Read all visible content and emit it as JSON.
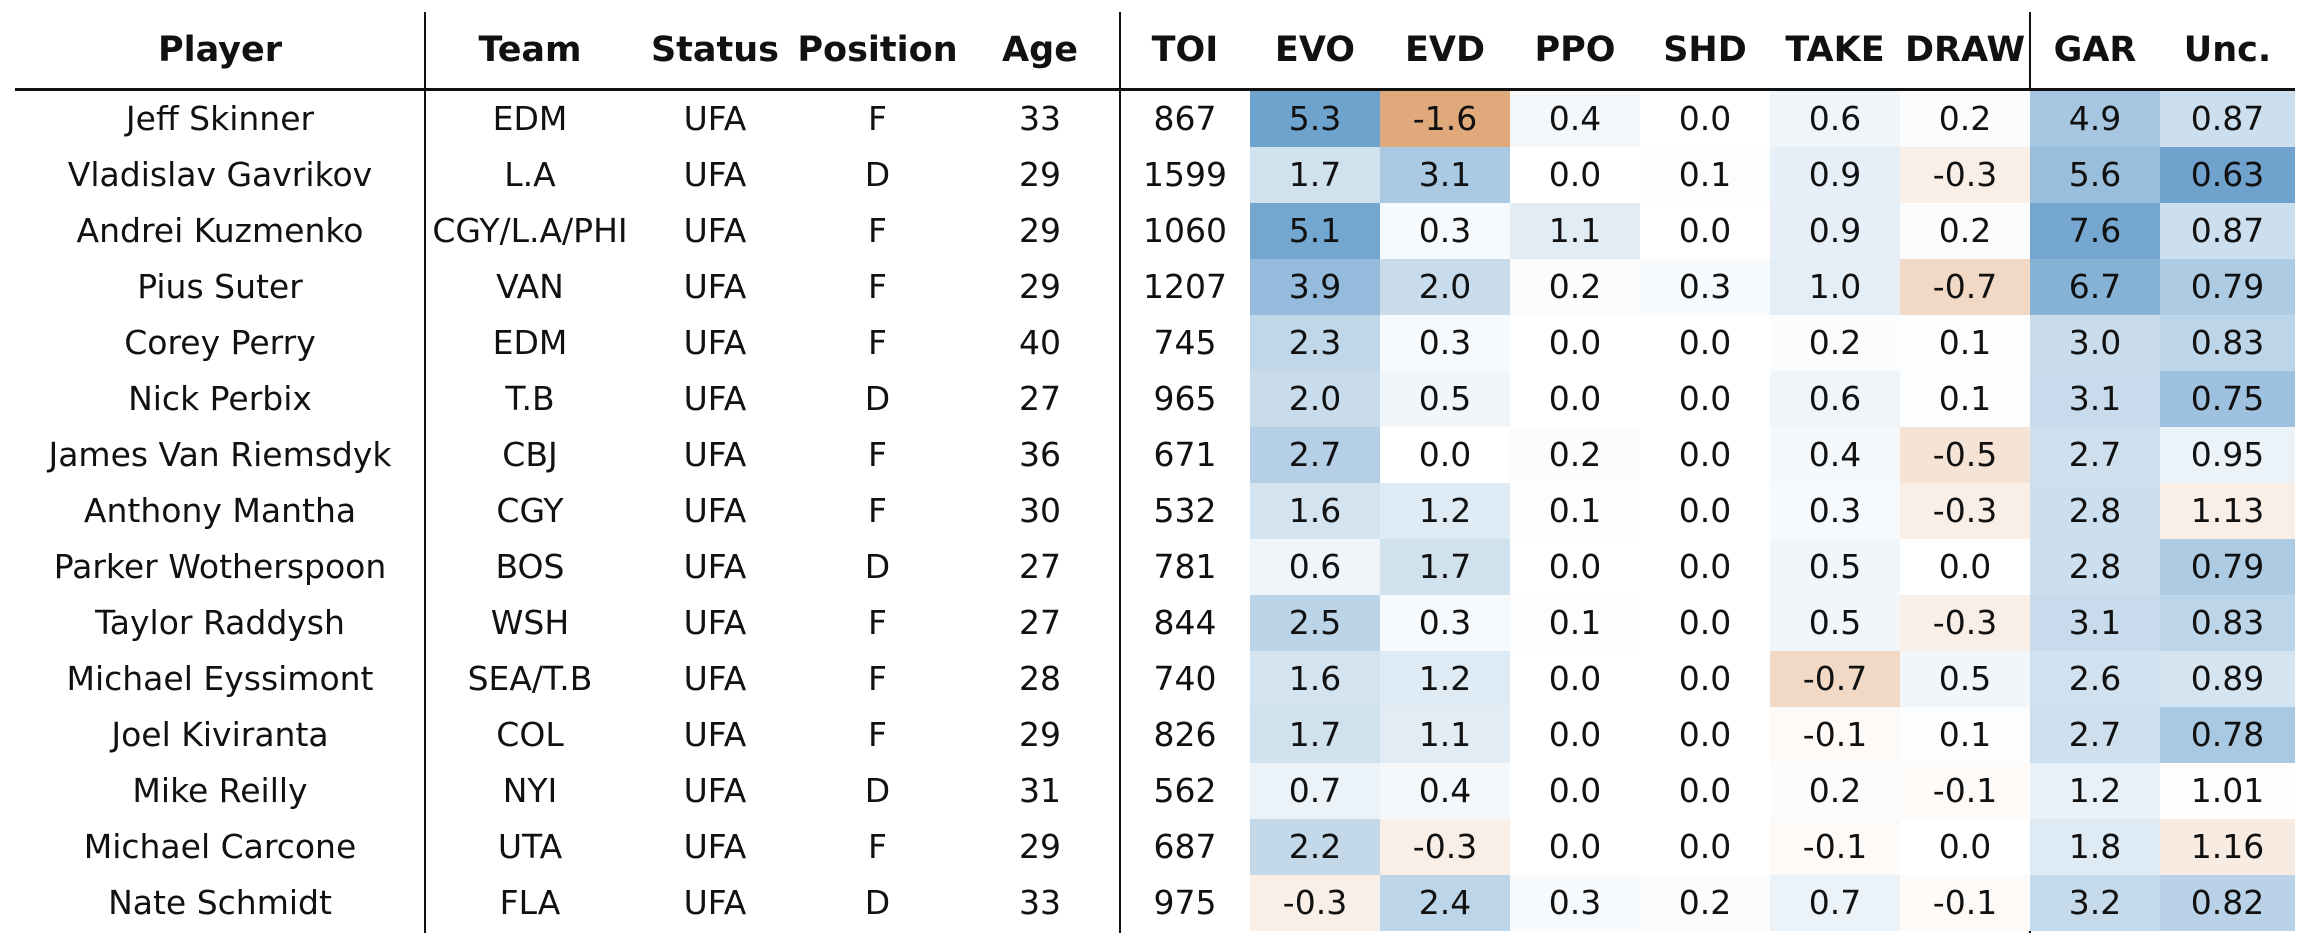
{
  "chart_data": {
    "type": "table",
    "columns": [
      "Player",
      "Team",
      "Status",
      "Position",
      "Age",
      "TOI",
      "EVO",
      "EVD",
      "PPO",
      "SHD",
      "TAKE",
      "DRAW",
      "GAR",
      "Unc."
    ],
    "rows": [
      [
        "Jeff Skinner",
        "EDM",
        "UFA",
        "F",
        "33",
        "867",
        "5.3",
        "-1.6",
        "0.4",
        "0.0",
        "0.6",
        "0.2",
        "4.9",
        "0.87"
      ],
      [
        "Vladislav Gavrikov",
        "L.A",
        "UFA",
        "D",
        "29",
        "1599",
        "1.7",
        "3.1",
        "0.0",
        "0.1",
        "0.9",
        "-0.3",
        "5.6",
        "0.63"
      ],
      [
        "Andrei Kuzmenko",
        "CGY/L.A/PHI",
        "UFA",
        "F",
        "29",
        "1060",
        "5.1",
        "0.3",
        "1.1",
        "0.0",
        "0.9",
        "0.2",
        "7.6",
        "0.87"
      ],
      [
        "Pius Suter",
        "VAN",
        "UFA",
        "F",
        "29",
        "1207",
        "3.9",
        "2.0",
        "0.2",
        "0.3",
        "1.0",
        "-0.7",
        "6.7",
        "0.79"
      ],
      [
        "Corey Perry",
        "EDM",
        "UFA",
        "F",
        "40",
        "745",
        "2.3",
        "0.3",
        "0.0",
        "0.0",
        "0.2",
        "0.1",
        "3.0",
        "0.83"
      ],
      [
        "Nick Perbix",
        "T.B",
        "UFA",
        "D",
        "27",
        "965",
        "2.0",
        "0.5",
        "0.0",
        "0.0",
        "0.6",
        "0.1",
        "3.1",
        "0.75"
      ],
      [
        "James Van Riemsdyk",
        "CBJ",
        "UFA",
        "F",
        "36",
        "671",
        "2.7",
        "0.0",
        "0.2",
        "0.0",
        "0.4",
        "-0.5",
        "2.7",
        "0.95"
      ],
      [
        "Anthony Mantha",
        "CGY",
        "UFA",
        "F",
        "30",
        "532",
        "1.6",
        "1.2",
        "0.1",
        "0.0",
        "0.3",
        "-0.3",
        "2.8",
        "1.13"
      ],
      [
        "Parker Wotherspoon",
        "BOS",
        "UFA",
        "D",
        "27",
        "781",
        "0.6",
        "1.7",
        "0.0",
        "0.0",
        "0.5",
        "0.0",
        "2.8",
        "0.79"
      ],
      [
        "Taylor Raddysh",
        "WSH",
        "UFA",
        "F",
        "27",
        "844",
        "2.5",
        "0.3",
        "0.1",
        "0.0",
        "0.5",
        "-0.3",
        "3.1",
        "0.83"
      ],
      [
        "Michael Eyssimont",
        "SEA/T.B",
        "UFA",
        "F",
        "28",
        "740",
        "1.6",
        "1.2",
        "0.0",
        "0.0",
        "-0.7",
        "0.5",
        "2.6",
        "0.89"
      ],
      [
        "Joel Kiviranta",
        "COL",
        "UFA",
        "F",
        "29",
        "826",
        "1.7",
        "1.1",
        "0.0",
        "0.0",
        "-0.1",
        "0.1",
        "2.7",
        "0.78"
      ],
      [
        "Mike Reilly",
        "NYI",
        "UFA",
        "D",
        "31",
        "562",
        "0.7",
        "0.4",
        "0.0",
        "0.0",
        "0.2",
        "-0.1",
        "1.2",
        "1.01"
      ],
      [
        "Michael Carcone",
        "UTA",
        "UFA",
        "F",
        "29",
        "687",
        "2.2",
        "-0.3",
        "0.0",
        "0.0",
        "-0.1",
        "0.0",
        "1.8",
        "1.16"
      ],
      [
        "Nate Schmidt",
        "FLA",
        "UFA",
        "D",
        "33",
        "975",
        "-0.3",
        "2.4",
        "0.3",
        "0.2",
        "0.7",
        "-0.1",
        "3.2",
        "0.82"
      ]
    ],
    "heatmap_columns": [
      "EVO",
      "EVD",
      "PPO",
      "SHD",
      "TAKE",
      "DRAW",
      "GAR",
      "Unc."
    ],
    "colors": {
      "positive": "#5b97c7",
      "negative": "#d8935a",
      "neutral": "#ffffff"
    }
  }
}
